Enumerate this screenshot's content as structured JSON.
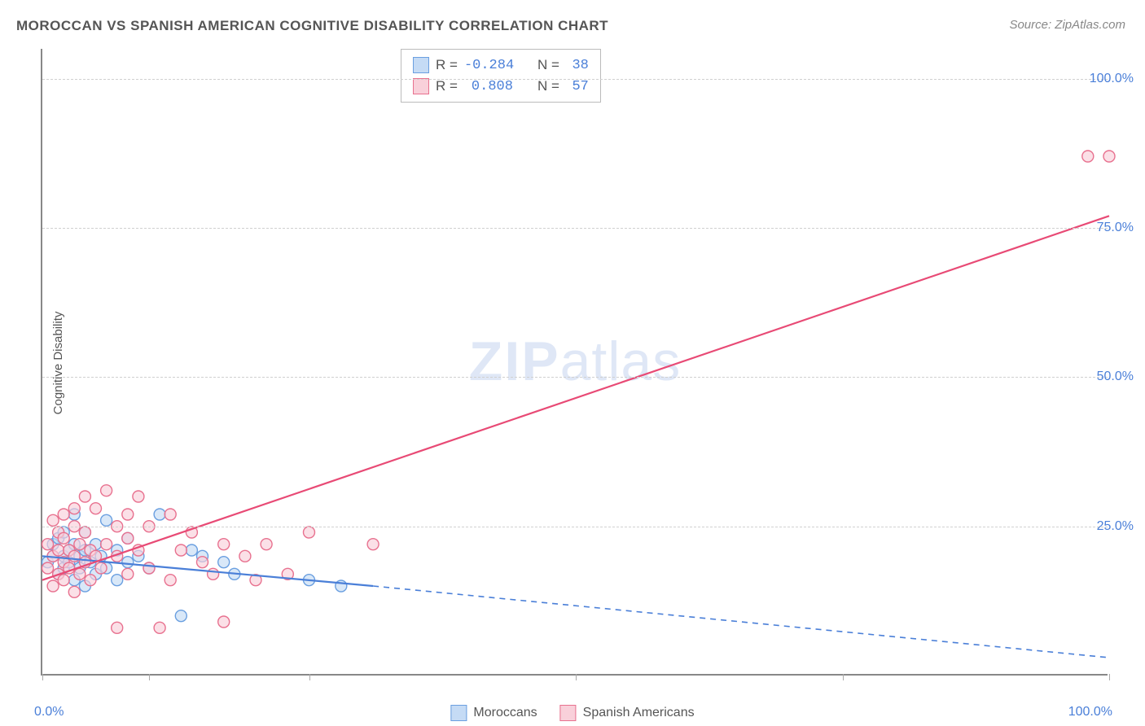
{
  "title": "MOROCCAN VS SPANISH AMERICAN COGNITIVE DISABILITY CORRELATION CHART",
  "source": "Source: ZipAtlas.com",
  "ylabel": "Cognitive Disability",
  "watermark_zip": "ZIP",
  "watermark_atlas": "atlas",
  "chart": {
    "type": "scatter-regression",
    "xlim": [
      0,
      100
    ],
    "ylim": [
      0,
      105
    ],
    "x_ticks": [
      0,
      10,
      25,
      50,
      75,
      100
    ],
    "x_tick_labels_shown": {
      "0": "0.0%",
      "100": "100.0%"
    },
    "y_ticks": [
      25,
      50,
      75,
      100
    ],
    "y_tick_labels": {
      "25": "25.0%",
      "50": "50.0%",
      "75": "75.0%",
      "100": "100.0%"
    },
    "background_color": "#ffffff",
    "grid_color": "#d0d0d0",
    "axis_color": "#888888",
    "tick_label_color": "#4a7fd8",
    "series": [
      {
        "name": "Moroccans",
        "color_fill": "#c5dbf5",
        "color_stroke": "#6a9fe0",
        "line_color": "#4a7fd8",
        "R": "-0.284",
        "N": "38",
        "points": [
          [
            0.5,
            19
          ],
          [
            1,
            20
          ],
          [
            1,
            22
          ],
          [
            1.5,
            17
          ],
          [
            1.5,
            23
          ],
          [
            2,
            18
          ],
          [
            2,
            20
          ],
          [
            2,
            24
          ],
          [
            2.5,
            19
          ],
          [
            2.5,
            21
          ],
          [
            3,
            16
          ],
          [
            3,
            22
          ],
          [
            3,
            27
          ],
          [
            3.5,
            18
          ],
          [
            3.5,
            20
          ],
          [
            4,
            15
          ],
          [
            4,
            21
          ],
          [
            4,
            24
          ],
          [
            4.5,
            19
          ],
          [
            5,
            17
          ],
          [
            5,
            22
          ],
          [
            5.5,
            20
          ],
          [
            6,
            26
          ],
          [
            6,
            18
          ],
          [
            7,
            21
          ],
          [
            7,
            16
          ],
          [
            8,
            19
          ],
          [
            8,
            23
          ],
          [
            9,
            20
          ],
          [
            10,
            18
          ],
          [
            11,
            27
          ],
          [
            13,
            10
          ],
          [
            14,
            21
          ],
          [
            15,
            20
          ],
          [
            17,
            19
          ],
          [
            18,
            17
          ],
          [
            25,
            16
          ],
          [
            28,
            15
          ]
        ],
        "regression_solid": {
          "x1": 0,
          "y1": 20,
          "x2": 31,
          "y2": 15
        },
        "regression_dashed": {
          "x1": 31,
          "y1": 15,
          "x2": 100,
          "y2": 3
        }
      },
      {
        "name": "Spanish Americans",
        "color_fill": "#f9d0da",
        "color_stroke": "#e8718f",
        "line_color": "#e84a75",
        "R": "0.808",
        "N": "57",
        "points": [
          [
            0.5,
            18
          ],
          [
            0.5,
            22
          ],
          [
            1,
            15
          ],
          [
            1,
            20
          ],
          [
            1,
            26
          ],
          [
            1.5,
            17
          ],
          [
            1.5,
            21
          ],
          [
            1.5,
            24
          ],
          [
            2,
            16
          ],
          [
            2,
            19
          ],
          [
            2,
            23
          ],
          [
            2,
            27
          ],
          [
            2.5,
            18
          ],
          [
            2.5,
            21
          ],
          [
            3,
            14
          ],
          [
            3,
            20
          ],
          [
            3,
            25
          ],
          [
            3,
            28
          ],
          [
            3.5,
            17
          ],
          [
            3.5,
            22
          ],
          [
            4,
            19
          ],
          [
            4,
            24
          ],
          [
            4,
            30
          ],
          [
            4.5,
            16
          ],
          [
            4.5,
            21
          ],
          [
            5,
            20
          ],
          [
            5,
            28
          ],
          [
            5.5,
            18
          ],
          [
            6,
            22
          ],
          [
            6,
            31
          ],
          [
            7,
            20
          ],
          [
            7,
            25
          ],
          [
            7,
            8
          ],
          [
            8,
            17
          ],
          [
            8,
            23
          ],
          [
            8,
            27
          ],
          [
            9,
            30
          ],
          [
            9,
            21
          ],
          [
            10,
            18
          ],
          [
            10,
            25
          ],
          [
            11,
            8
          ],
          [
            12,
            27
          ],
          [
            12,
            16
          ],
          [
            13,
            21
          ],
          [
            14,
            24
          ],
          [
            15,
            19
          ],
          [
            16,
            17
          ],
          [
            17,
            22
          ],
          [
            17,
            9
          ],
          [
            19,
            20
          ],
          [
            20,
            16
          ],
          [
            21,
            22
          ],
          [
            23,
            17
          ],
          [
            25,
            24
          ],
          [
            31,
            22
          ],
          [
            98,
            87
          ],
          [
            100,
            87
          ]
        ],
        "regression_solid": {
          "x1": 0,
          "y1": 16,
          "x2": 100,
          "y2": 77
        },
        "regression_dashed": null
      }
    ]
  },
  "legend": {
    "r_label": "R =",
    "n_label": "N ="
  },
  "bottom_legend": {
    "item1": "Moroccans",
    "item2": "Spanish Americans"
  }
}
